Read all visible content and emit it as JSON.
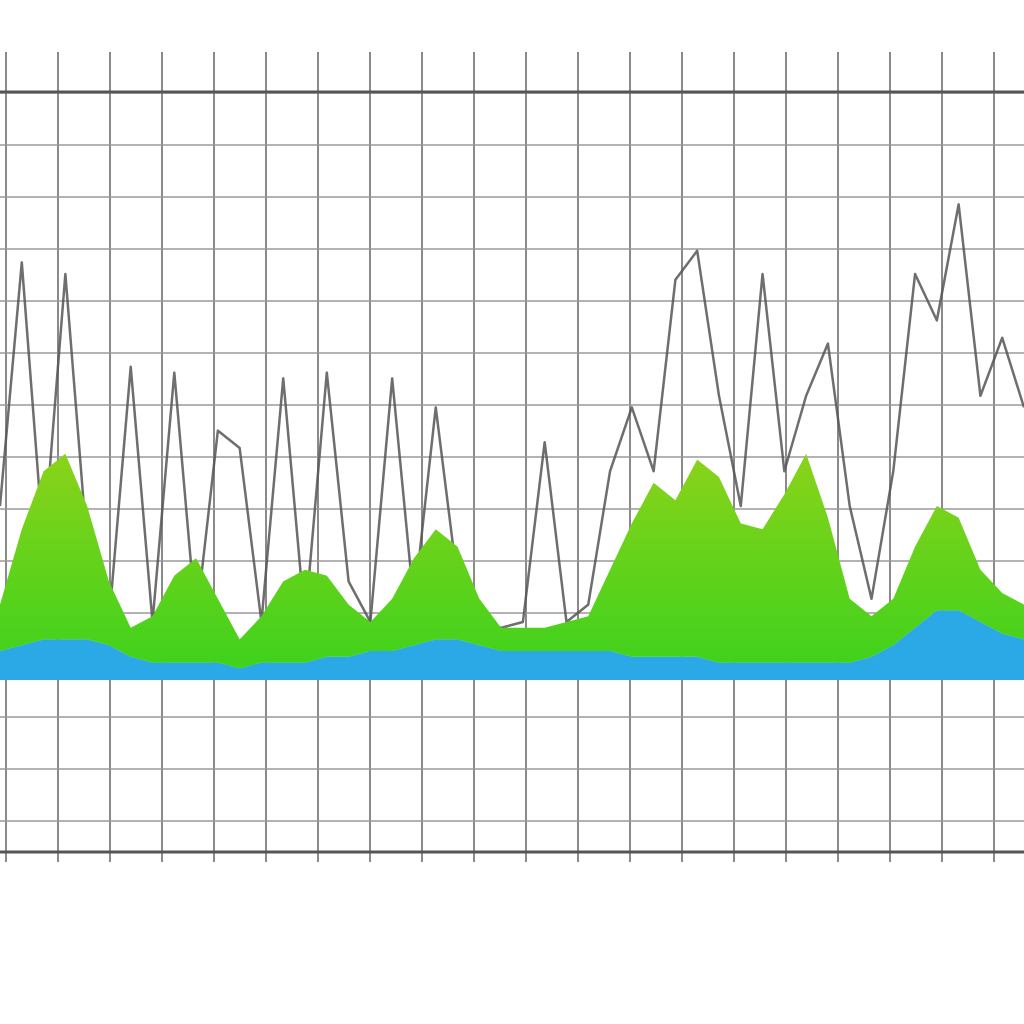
{
  "chart_data": {
    "type": "area",
    "stacked": true,
    "ylim": [
      0,
      100
    ],
    "series": [
      {
        "name": null,
        "type": "line",
        "stack": false,
        "color": "#555555",
        "values": [
          30,
          72,
          23,
          70,
          23,
          10,
          54,
          10,
          53,
          10,
          43,
          40,
          10,
          52,
          10,
          53,
          17,
          10,
          52,
          13,
          47,
          17,
          10,
          9,
          10,
          41,
          10,
          13,
          36,
          47,
          36,
          69,
          74,
          49,
          30,
          70,
          36,
          49,
          58,
          30,
          14,
          36,
          70,
          62,
          82,
          49,
          59,
          47
        ]
      },
      {
        "name": null,
        "type": "area",
        "stack": true,
        "color": "#2aa9e6",
        "values": [
          5,
          6,
          7,
          7,
          7,
          6,
          4,
          3,
          3,
          3,
          3,
          2,
          3,
          3,
          3,
          4,
          4,
          5,
          5,
          6,
          7,
          7,
          6,
          5,
          5,
          5,
          5,
          5,
          5,
          4,
          4,
          4,
          4,
          3,
          3,
          3,
          3,
          3,
          3,
          3,
          4,
          6,
          9,
          12,
          12,
          10,
          8,
          7
        ]
      },
      {
        "name": null,
        "type": "area",
        "stack": true,
        "color": "#5fd11c",
        "values": [
          8,
          20,
          29,
          32,
          23,
          11,
          5,
          8,
          15,
          18,
          11,
          5,
          8,
          14,
          16,
          14,
          9,
          5,
          9,
          15,
          19,
          16,
          8,
          4,
          4,
          4,
          5,
          6,
          14,
          23,
          30,
          27,
          34,
          32,
          24,
          23,
          29,
          36,
          25,
          11,
          7,
          8,
          14,
          18,
          16,
          9,
          7,
          6
        ]
      }
    ]
  }
}
